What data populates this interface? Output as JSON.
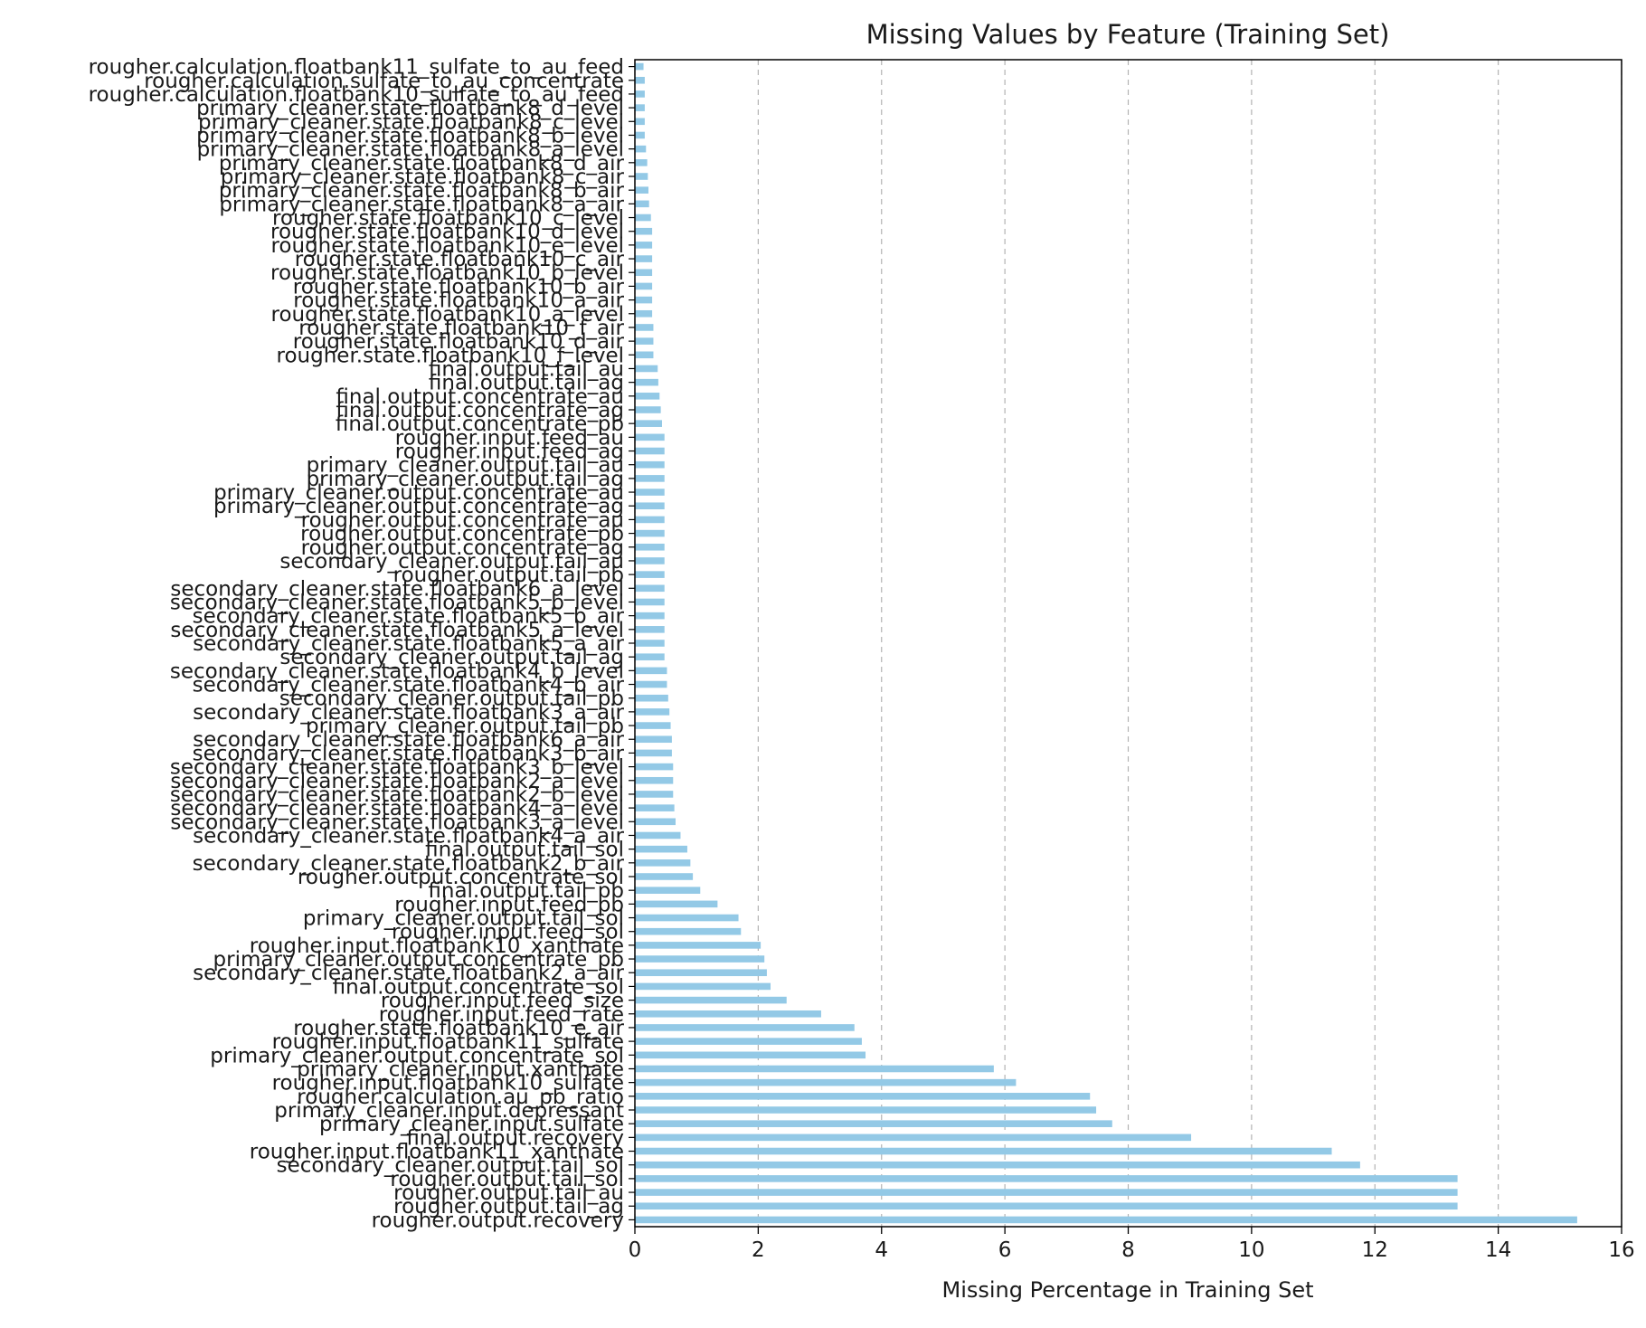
{
  "chart_data": {
    "type": "bar",
    "orientation": "horizontal",
    "title": "Missing Values by Feature (Training Set)",
    "xlabel": "Missing Percentage in Training Set",
    "ylabel": "",
    "xlim": [
      0,
      16
    ],
    "xticks": [
      0,
      2,
      4,
      6,
      8,
      10,
      12,
      14,
      16
    ],
    "grid": "x-dashed",
    "bar_color": "#93c9e6",
    "categories": [
      "rougher.calculation.floatbank11_sulfate_to_au_feed",
      "rougher.calculation.sulfate_to_au_concentrate",
      "rougher.calculation.floatbank10_sulfate_to_au_feed",
      "primary_cleaner.state.floatbank8_d_level",
      "primary_cleaner.state.floatbank8_c_level",
      "primary_cleaner.state.floatbank8_b_level",
      "primary_cleaner.state.floatbank8_a_level",
      "primary_cleaner.state.floatbank8_d_air",
      "primary_cleaner.state.floatbank8_c_air",
      "primary_cleaner.state.floatbank8_b_air",
      "primary_cleaner.state.floatbank8_a_air",
      "rougher.state.floatbank10_c_level",
      "rougher.state.floatbank10_d_level",
      "rougher.state.floatbank10_e_level",
      "rougher.state.floatbank10_c_air",
      "rougher.state.floatbank10_b_level",
      "rougher.state.floatbank10_b_air",
      "rougher.state.floatbank10_a_air",
      "rougher.state.floatbank10_a_level",
      "rougher.state.floatbank10_f_air",
      "rougher.state.floatbank10_d_air",
      "rougher.state.floatbank10_f_level",
      "final.output.tail_au",
      "final.output.tail_ag",
      "final.output.concentrate_au",
      "final.output.concentrate_ag",
      "final.output.concentrate_pb",
      "rougher.input.feed_au",
      "rougher.input.feed_ag",
      "primary_cleaner.output.tail_au",
      "primary_cleaner.output.tail_ag",
      "primary_cleaner.output.concentrate_au",
      "primary_cleaner.output.concentrate_ag",
      "rougher.output.concentrate_au",
      "rougher.output.concentrate_pb",
      "rougher.output.concentrate_ag",
      "secondary_cleaner.output.tail_au",
      "rougher.output.tail_pb",
      "secondary_cleaner.state.floatbank6_a_level",
      "secondary_cleaner.state.floatbank5_b_level",
      "secondary_cleaner.state.floatbank5_b_air",
      "secondary_cleaner.state.floatbank5_a_level",
      "secondary_cleaner.state.floatbank5_a_air",
      "secondary_cleaner.output.tail_ag",
      "secondary_cleaner.state.floatbank4_b_level",
      "secondary_cleaner.state.floatbank4_b_air",
      "secondary_cleaner.output.tail_pb",
      "secondary_cleaner.state.floatbank3_a_air",
      "primary_cleaner.output.tail_pb",
      "secondary_cleaner.state.floatbank6_a_air",
      "secondary_cleaner.state.floatbank3_b_air",
      "secondary_cleaner.state.floatbank3_b_level",
      "secondary_cleaner.state.floatbank2_a_level",
      "secondary_cleaner.state.floatbank2_b_level",
      "secondary_cleaner.state.floatbank4_a_level",
      "secondary_cleaner.state.floatbank3_a_level",
      "secondary_cleaner.state.floatbank4_a_air",
      "final.output.tail_sol",
      "secondary_cleaner.state.floatbank2_b_air",
      "rougher.output.concentrate_sol",
      "final.output.tail_pb",
      "rougher.input.feed_pb",
      "primary_cleaner.output.tail_sol",
      "rougher.input.feed_sol",
      "rougher.input.floatbank10_xanthate",
      "primary_cleaner.output.concentrate_pb",
      "secondary_cleaner.state.floatbank2_a_air",
      "final.output.concentrate_sol",
      "rougher.input.feed_size",
      "rougher.input.feed_rate",
      "rougher.state.floatbank10_e_air",
      "rougher.input.floatbank11_sulfate",
      "primary_cleaner.output.concentrate_sol",
      "primary_cleaner.input.xanthate",
      "rougher.input.floatbank10_sulfate",
      "rougher.calculation.au_pb_ratio",
      "primary_cleaner.input.depressant",
      "primary_cleaner.input.sulfate",
      "final.output.recovery",
      "rougher.input.floatbank11_xanthate",
      "secondary_cleaner.output.tail_sol",
      "rougher.output.tail_sol",
      "rougher.output.tail_au",
      "rougher.output.tail_ag",
      "rougher.output.recovery"
    ],
    "values": [
      0.14,
      0.16,
      0.16,
      0.16,
      0.16,
      0.16,
      0.18,
      0.2,
      0.21,
      0.22,
      0.23,
      0.26,
      0.28,
      0.28,
      0.28,
      0.28,
      0.28,
      0.28,
      0.28,
      0.3,
      0.3,
      0.3,
      0.37,
      0.38,
      0.4,
      0.42,
      0.44,
      0.48,
      0.48,
      0.48,
      0.48,
      0.48,
      0.48,
      0.48,
      0.48,
      0.48,
      0.48,
      0.48,
      0.48,
      0.48,
      0.48,
      0.48,
      0.48,
      0.48,
      0.52,
      0.52,
      0.54,
      0.56,
      0.58,
      0.6,
      0.6,
      0.62,
      0.62,
      0.62,
      0.64,
      0.66,
      0.74,
      0.85,
      0.9,
      0.94,
      1.06,
      1.34,
      1.68,
      1.72,
      2.04,
      2.1,
      2.14,
      2.2,
      2.46,
      3.02,
      3.56,
      3.68,
      3.74,
      5.82,
      6.18,
      7.38,
      7.48,
      7.74,
      9.02,
      11.3,
      11.76,
      13.34,
      13.34,
      13.34,
      15.28
    ]
  }
}
